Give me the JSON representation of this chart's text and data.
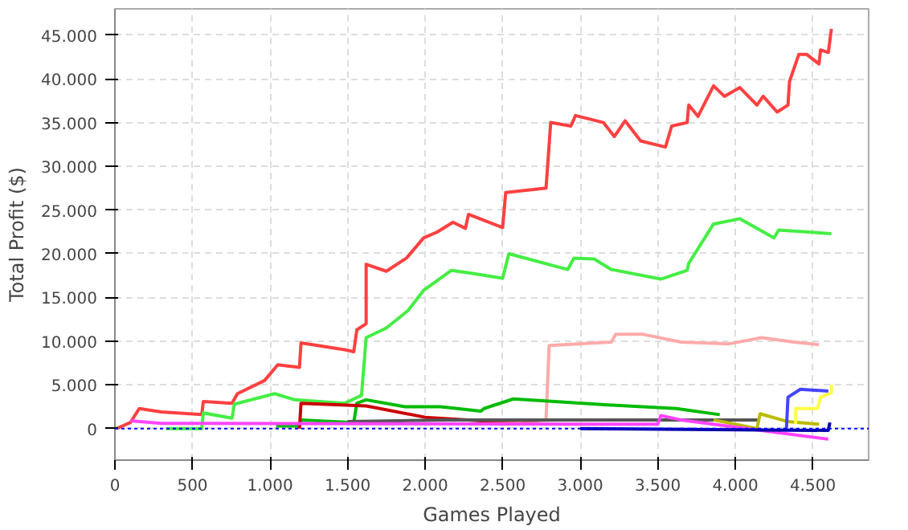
{
  "chart_data": {
    "type": "line",
    "xlabel": "Games Played",
    "ylabel": "Total Profit ($)",
    "xlim": [
      0,
      4860
    ],
    "ylim": [
      -3600,
      48000
    ],
    "xticks": [
      0,
      500,
      {
        "value": 1000,
        "label": "1.000"
      },
      {
        "value": 1500,
        "label": "1.500"
      },
      {
        "value": 2000,
        "label": "2.000"
      },
      {
        "value": 2500,
        "label": "2.500"
      },
      {
        "value": 3000,
        "label": "3.000"
      },
      {
        "value": 3500,
        "label": "3.500"
      },
      {
        "value": 4000,
        "label": "4.000"
      },
      {
        "value": 4500,
        "label": "4.500"
      }
    ],
    "yticks": [
      0,
      {
        "value": 5000,
        "label": "5.000"
      },
      {
        "value": 10000,
        "label": "10.000"
      },
      {
        "value": 15000,
        "label": "15.000"
      },
      {
        "value": 20000,
        "label": "20.000"
      },
      {
        "value": 25000,
        "label": "25.000"
      },
      {
        "value": 30000,
        "label": "30.000"
      },
      {
        "value": 35000,
        "label": "35.000"
      },
      {
        "value": 40000,
        "label": "40.000"
      },
      {
        "value": 45000,
        "label": "45.000"
      }
    ],
    "grid": true,
    "line_style": "solid",
    "ref_lines": [
      {
        "axis": "y",
        "value": 0,
        "color": "#0000ff",
        "line_style": "dotted"
      }
    ],
    "series": [
      {
        "color": "#ff4040",
        "x": [
          10,
          100,
          157,
          300,
          560,
          570,
          755,
          790,
          965,
          1050,
          1190,
          1200,
          1490,
          1540,
          1560,
          1620,
          1620,
          1750,
          1880,
          1990,
          2080,
          2180,
          2260,
          2280,
          2500,
          2520,
          2780,
          2810,
          2940,
          2970,
          3150,
          3220,
          3290,
          3390,
          3550,
          3590,
          3690,
          3700,
          3760,
          3860,
          3930,
          4030,
          4140,
          4180,
          4270,
          4340,
          4350,
          4410,
          4460,
          4540,
          4550,
          4600,
          4620
        ],
        "values": [
          0,
          700,
          2300,
          1900,
          1600,
          3100,
          2900,
          4000,
          5500,
          7300,
          7000,
          9800,
          9000,
          8800,
          11300,
          12000,
          18800,
          18000,
          19500,
          21800,
          22500,
          23600,
          22900,
          24500,
          23000,
          27000,
          27500,
          35000,
          34600,
          35800,
          35000,
          33400,
          35200,
          32900,
          32200,
          34600,
          35000,
          37000,
          35700,
          39200,
          38000,
          39000,
          37000,
          38000,
          36200,
          37000,
          39700,
          42800,
          42800,
          41700,
          43300,
          43000,
          45700
        ]
      },
      {
        "color": "#44ee44",
        "x": [
          330,
          560,
          570,
          755,
          770,
          1030,
          1160,
          1480,
          1590,
          1620,
          1750,
          1890,
          1990,
          2170,
          2290,
          2500,
          2540,
          2920,
          2960,
          3090,
          3200,
          3520,
          3690,
          3700,
          3860,
          4030,
          4250,
          4280,
          4620
        ],
        "values": [
          0,
          0,
          1800,
          1200,
          2800,
          4000,
          3300,
          2900,
          3800,
          10400,
          11500,
          13500,
          15800,
          18100,
          17800,
          17200,
          20000,
          18200,
          19500,
          19400,
          18200,
          17100,
          18100,
          18900,
          23400,
          24000,
          21800,
          22700,
          22300
        ]
      },
      {
        "color": "#ffaaaa",
        "x": [
          2600,
          2780,
          2800,
          3200,
          3230,
          3400,
          3650,
          3960,
          4170,
          4380,
          4540
        ],
        "values": [
          500,
          1100,
          9500,
          9900,
          10800,
          10800,
          9900,
          9700,
          10400,
          9900,
          9600
        ]
      },
      {
        "color": "#00bb00",
        "x": [
          1040,
          1190,
          1200,
          1540,
          1560,
          1620,
          1870,
          2100,
          2360,
          2380,
          2570,
          3200,
          3620,
          3900
        ],
        "values": [
          300,
          300,
          1000,
          700,
          2900,
          3300,
          2500,
          2500,
          2000,
          2300,
          3400,
          2700,
          2300,
          1600
        ]
      },
      {
        "color": "#cc0000",
        "x": [
          1190,
          1200,
          1620,
          2000,
          2360,
          2850
        ],
        "values": [
          0,
          2900,
          2600,
          1300,
          900,
          1000
        ]
      },
      {
        "color": "#555555",
        "x": [
          1500,
          2150,
          4150
        ],
        "values": [
          800,
          1000,
          1000
        ]
      },
      {
        "color": "#bbbb00",
        "x": [
          3860,
          4140,
          4160,
          4340,
          4540
        ],
        "values": [
          1000,
          0,
          1700,
          800,
          500
        ]
      },
      {
        "color": "#ffff44",
        "x": [
          4390,
          4390,
          4530,
          4550,
          4620,
          4620
        ],
        "values": [
          500,
          2300,
          2300,
          3600,
          4100,
          5000
        ]
      },
      {
        "color": "#4444ff",
        "x": [
          4330,
          4340,
          4420,
          4600
        ],
        "values": [
          0,
          3600,
          4500,
          4300
        ]
      },
      {
        "color": "#ff44ff",
        "x": [
          100,
          300,
          3500,
          3520,
          3650,
          4600
        ],
        "values": [
          900,
          600,
          500,
          1500,
          1000,
          -1200
        ]
      },
      {
        "color": "#0000aa",
        "x": [
          3000,
          4600,
          4610
        ],
        "values": [
          0,
          -200,
          700
        ]
      }
    ]
  }
}
